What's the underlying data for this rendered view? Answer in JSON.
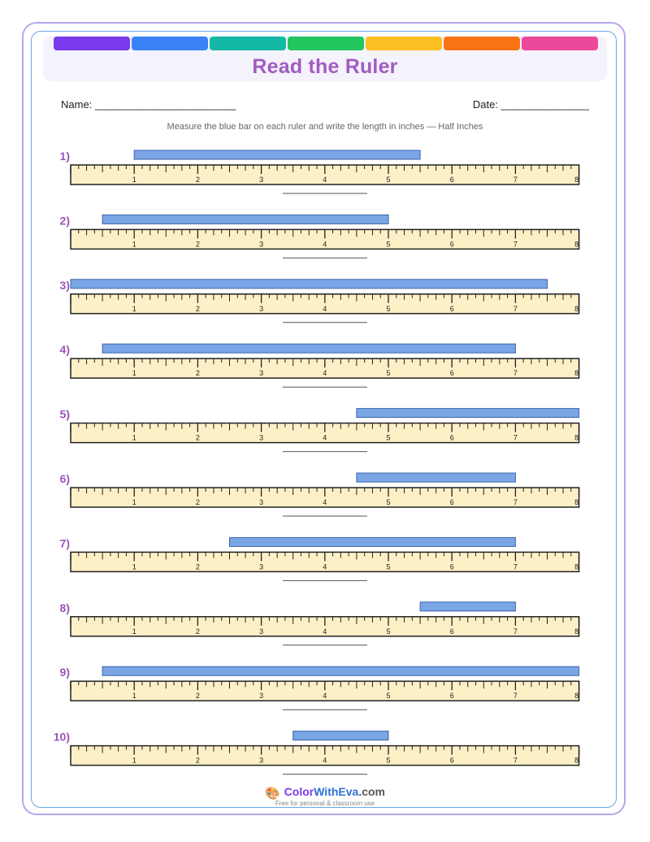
{
  "header": {
    "title": "Read the Ruler",
    "strip_colors": [
      "#7c3aed",
      "#3b82f6",
      "#14b8a6",
      "#22c55e",
      "#fbbf24",
      "#f97316",
      "#ec4899"
    ]
  },
  "fields": {
    "name_label": "Name: ________________________",
    "date_label": "Date: _______________"
  },
  "instructions": "Measure the blue bar on each ruler and write the length in inches — Half Inches",
  "ruler": {
    "max_inches": 8,
    "tick_labels": [
      "1",
      "2",
      "3",
      "4",
      "5",
      "6",
      "7",
      "8"
    ],
    "fill_color": "#fdf0c7",
    "bar_color": "#7aa6e6"
  },
  "problems": [
    {
      "label": "1)",
      "bar_start_in": 1.0,
      "bar_end_in": 5.5
    },
    {
      "label": "2)",
      "bar_start_in": 0.5,
      "bar_end_in": 5.0
    },
    {
      "label": "3)",
      "bar_start_in": 0.0,
      "bar_end_in": 7.5
    },
    {
      "label": "4)",
      "bar_start_in": 0.5,
      "bar_end_in": 7.0
    },
    {
      "label": "5)",
      "bar_start_in": 4.5,
      "bar_end_in": 8.0
    },
    {
      "label": "6)",
      "bar_start_in": 4.5,
      "bar_end_in": 7.0
    },
    {
      "label": "7)",
      "bar_start_in": 2.5,
      "bar_end_in": 7.0
    },
    {
      "label": "8)",
      "bar_start_in": 5.5,
      "bar_end_in": 7.0
    },
    {
      "label": "9)",
      "bar_start_in": 0.5,
      "bar_end_in": 8.0
    },
    {
      "label": "10)",
      "bar_start_in": 3.5,
      "bar_end_in": 5.0
    }
  ],
  "footer": {
    "brand_color": "Color",
    "brand_with": "WithEva",
    "brand_domain": ".com",
    "tagline": "Free for personal & classroom use",
    "icon": "palette-icon"
  }
}
